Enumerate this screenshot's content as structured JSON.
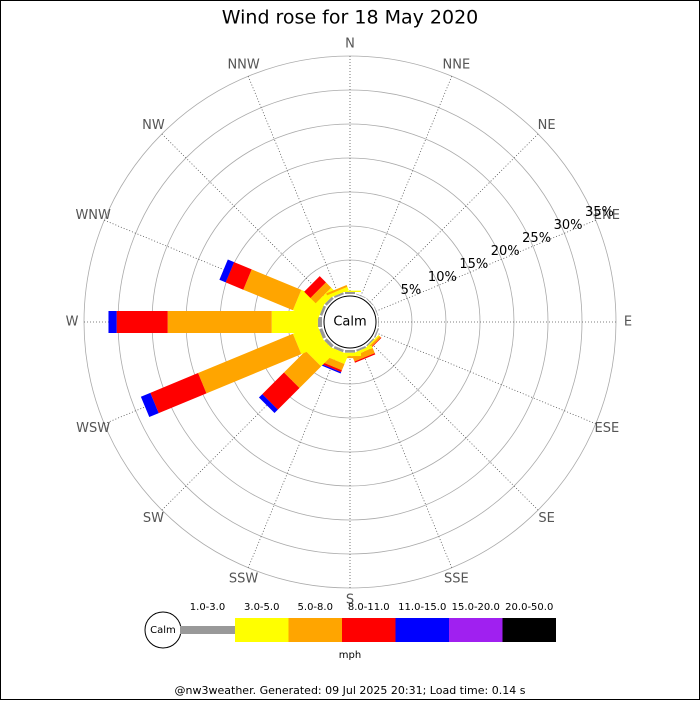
{
  "chart_data": {
    "type": "windrose",
    "title": "Wind rose for 18 May 2020",
    "directions": [
      "N",
      "NNE",
      "NE",
      "ENE",
      "E",
      "ESE",
      "SE",
      "SSE",
      "S",
      "SSW",
      "SW",
      "WSW",
      "W",
      "WNW",
      "NW",
      "NNW"
    ],
    "calm_label": "Calm",
    "rlim": [
      0,
      35
    ],
    "rticks": [
      {
        "value": 5,
        "label": "5%"
      },
      {
        "value": 10,
        "label": "10%"
      },
      {
        "value": 15,
        "label": "15%"
      },
      {
        "value": 20,
        "label": "20%"
      },
      {
        "value": 25,
        "label": "25%"
      },
      {
        "value": 30,
        "label": "30%"
      },
      {
        "value": 35,
        "label": "35%"
      }
    ],
    "series": [
      {
        "name": "1.0-3.0",
        "color": "#999999",
        "values": [
          0.3,
          0.1,
          0.1,
          0.1,
          0.1,
          0.2,
          0.2,
          0.3,
          0.4,
          0.4,
          0.5,
          0.5,
          0.6,
          0.4,
          0.4,
          0.3
        ]
      },
      {
        "name": "3.0-5.0",
        "color": "#ffff00",
        "values": [
          0.2,
          0,
          0,
          0,
          0,
          0,
          0.2,
          0.4,
          0.5,
          1.5,
          3.0,
          3.8,
          6.8,
          3.9,
          1.0,
          0.5
        ]
      },
      {
        "name": "5.0-8.0",
        "color": "#ffa500",
        "values": [
          0,
          0,
          0,
          0,
          0,
          0,
          0.3,
          0.8,
          0.3,
          1.0,
          4.5,
          15.1,
          15.3,
          7.9,
          1.1,
          0.3
        ]
      },
      {
        "name": "8.0-11.0",
        "color": "#ff0000",
        "values": [
          0,
          0,
          0,
          0,
          0,
          0,
          0.1,
          0.2,
          0,
          0.3,
          4.5,
          7.6,
          7.5,
          2.8,
          1.3,
          0
        ]
      },
      {
        "name": "11.0-15.0",
        "color": "#0000ff",
        "values": [
          0,
          0,
          0,
          0,
          0,
          0,
          0,
          0,
          0,
          0.2,
          0.7,
          1.5,
          1.2,
          1.0,
          0,
          0
        ]
      },
      {
        "name": "15.0-20.0",
        "color": "#a020f0",
        "values": [
          0,
          0,
          0,
          0,
          0,
          0,
          0,
          0,
          0,
          0,
          0,
          0,
          0,
          0,
          0,
          0
        ]
      },
      {
        "name": "20.0-50.0",
        "color": "#000000",
        "values": [
          0,
          0,
          0,
          0,
          0,
          0,
          0,
          0,
          0,
          0,
          0,
          0,
          0,
          0,
          0,
          0
        ]
      }
    ],
    "units": "mph",
    "footer": "@nw3weather. Generated: 09 Jul 2025 20:31; Load time: 0.14 s"
  }
}
